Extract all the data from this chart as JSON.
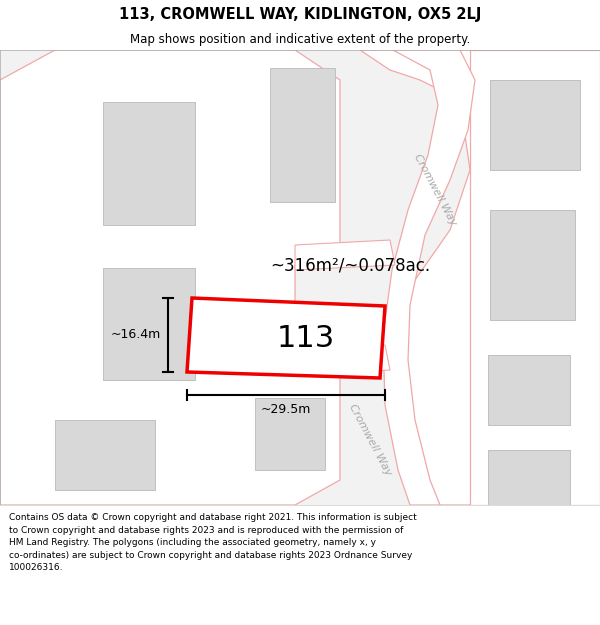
{
  "title_line1": "113, CROMWELL WAY, KIDLINGTON, OX5 2LJ",
  "title_line2": "Map shows position and indicative extent of the property.",
  "footer_text": "Contains OS data © Crown copyright and database right 2021. This information is subject\nto Crown copyright and database rights 2023 and is reproduced with the permission of\nHM Land Registry. The polygons (including the associated geometry, namely x, y\nco-ordinates) are subject to Crown copyright and database rights 2023 Ordnance Survey\n100026316.",
  "map_bg": "#f2f2f2",
  "road_fill": "#ffffff",
  "road_stroke": "#f0a8a8",
  "building_fill": "#d8d8d8",
  "building_stroke": "#c0c0c0",
  "plot_stroke": "#ee0000",
  "plot_fill": "#ffffff",
  "plot_label": "113",
  "area_label": "~316m²/~0.078ac.",
  "dim_width_label": "~29.5m",
  "dim_height_label": "~16.4m",
  "road_label_upper": "Cromwell Way",
  "road_label_lower": "Cromwell Way",
  "title_fontsize": 10.5,
  "subtitle_fontsize": 8.5,
  "footer_fontsize": 6.5,
  "area_fontsize": 12,
  "plot_num_fontsize": 22,
  "dim_fontsize": 9,
  "road_label_fontsize": 8
}
